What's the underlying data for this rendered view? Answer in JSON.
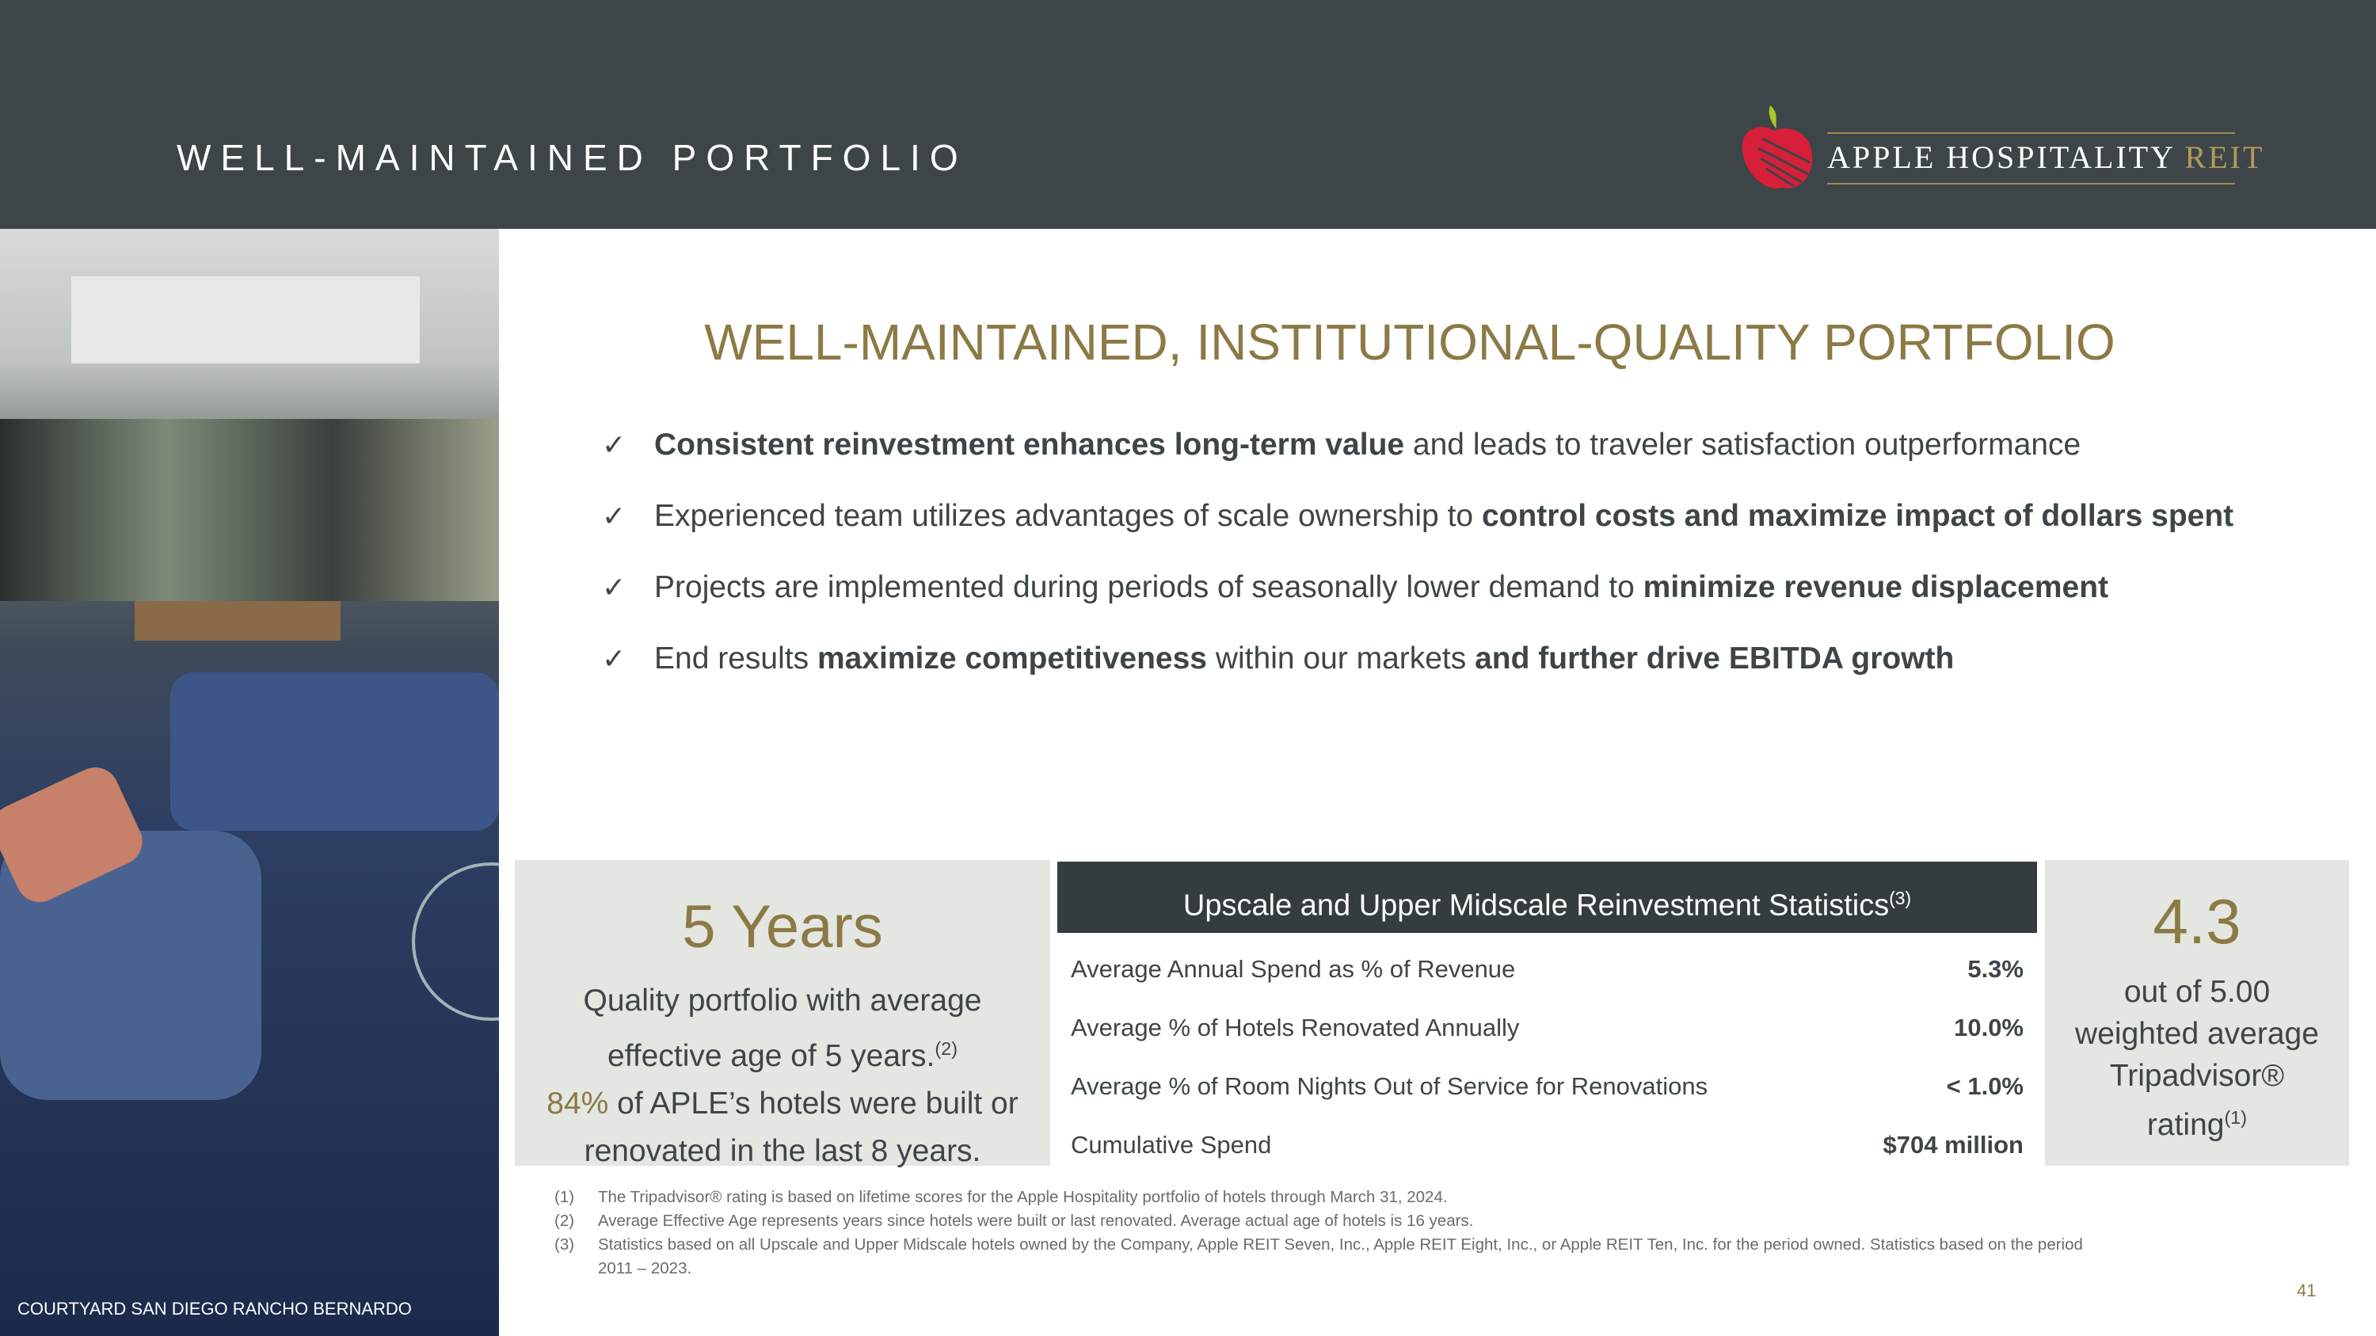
{
  "header": {
    "title": "WELL-MAINTAINED PORTFOLIO",
    "logo_text": "APPLE HOSPITALITY",
    "logo_accent": "REIT"
  },
  "photo": {
    "caption": "COURTYARD SAN DIEGO RANCHO BERNARDO"
  },
  "main": {
    "heading": "WELL-MAINTAINED, INSTITUTIONAL-QUALITY PORTFOLIO",
    "check": "✓",
    "bullets": [
      {
        "a": "",
        "b": "Consistent reinvestment enhances long-term value",
        "c": " and leads to traveler satisfaction outperformance",
        "d": "",
        "e": ""
      },
      {
        "a": "Experienced team utilizes advantages of scale ownership to ",
        "b": "control costs and maximize impact of dollars spent",
        "c": "",
        "d": "",
        "e": ""
      },
      {
        "a": "Projects are implemented during periods of seasonally lower demand to ",
        "b": "minimize revenue displacement",
        "c": "",
        "d": "",
        "e": ""
      },
      {
        "a": "End results ",
        "b": "maximize competitiveness",
        "c": " within our markets ",
        "d": "and further drive EBITDA growth",
        "e": ""
      }
    ]
  },
  "left_box": {
    "big": "5 Years",
    "line1": "Quality portfolio with average",
    "line2": "effective age of 5 years.",
    "line2_sup": "(2)",
    "pct": "84%",
    "line3": " of APLE’s hotels were built or",
    "line4": "renovated in the last 8 years."
  },
  "stats": {
    "title": "Upscale and Upper Midscale Reinvestment Statistics",
    "title_sup": "(3)",
    "rows": [
      {
        "label": "Average Annual Spend as % of Revenue",
        "value": "5.3%"
      },
      {
        "label": "Average % of Hotels Renovated Annually",
        "value": "10.0%"
      },
      {
        "label": "Average % of Room Nights Out of Service for Renovations",
        "value": "< 1.0%"
      },
      {
        "label": "Cumulative Spend",
        "value": "$704 million"
      }
    ]
  },
  "right_box": {
    "big": "4.3",
    "line1": "out of 5.00",
    "line2": "weighted average",
    "line3": "Tripadvisor®",
    "line4": "rating",
    "line4_sup": "(1)"
  },
  "footnotes": [
    {
      "n": "(1)",
      "text": "The Tripadvisor® rating is based on lifetime scores for the Apple Hospitality portfolio of hotels through March 31, 2024."
    },
    {
      "n": "(2)",
      "text": "Average Effective Age represents years since hotels were built or last renovated. Average actual age of hotels is 16 years."
    },
    {
      "n": "(3)",
      "text": "Statistics based on all Upscale and Upper Midscale hotels owned by the Company, Apple REIT Seven, Inc., Apple REIT Eight, Inc., or Apple REIT Ten, Inc. for the period owned. Statistics based on the period"
    },
    {
      "n": "",
      "text": "2011 – 2023."
    }
  ],
  "page_number": "41",
  "colors": {
    "header": "#3d4548",
    "accent_gold": "#8b7a45",
    "box": "#e4e6e1",
    "apple_red": "#d71f3a",
    "leaf_green": "#a8c82a"
  }
}
